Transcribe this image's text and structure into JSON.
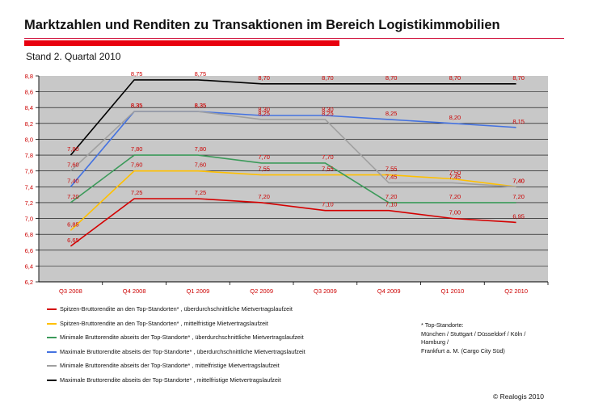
{
  "header": {
    "title": "Marktzahlen und Renditen zu Transaktionen im Bereich Logistikimmobilien",
    "subtitle": "Stand 2. Quartal 2010"
  },
  "footnote": {
    "text": "* Top-Standorte:\nMünchen / Stuttgart / Düsseldorf / Köln /\nHamburg /\nFrankfurt a. M. (Cargo City Süd)"
  },
  "copyright": "© Realogis 2010",
  "colors": {
    "plot_background": "#c8c8c8",
    "data_label": "#cc0000"
  },
  "chart_data": {
    "type": "line",
    "title": "",
    "xlabel": "",
    "ylabel": "",
    "ylim": [
      6.2,
      8.8
    ],
    "y_ticks": [
      "6,2",
      "6,4",
      "6,6",
      "6,8",
      "7,0",
      "7,2",
      "7,4",
      "7,6",
      "7,8",
      "8,0",
      "8,2",
      "8,4",
      "8,6",
      "8,8"
    ],
    "grid": true,
    "legend_position": "bottom",
    "categories": [
      "Q3 2008",
      "Q4 2008",
      "Q1 2009",
      "Q2 2009",
      "Q3 2009",
      "Q4 2009",
      "Q1 2010",
      "Q2 2010"
    ],
    "series": [
      {
        "name": "Spitzen-Bruttorendite an den Top-Standorten* , überdurchschnittliche Mietvertragslaufzeit",
        "color": "#d40000",
        "values": [
          6.65,
          7.25,
          7.25,
          7.2,
          7.1,
          7.1,
          7.0,
          6.95
        ],
        "labels": [
          "6,65",
          "7,25",
          "7,25",
          "7,20",
          "7,10",
          "7,10",
          "7,00",
          "6,95"
        ]
      },
      {
        "name": "Spitzen-Bruttorendite an den Top-Standorten* , mittelfristige Mietvertragslaufzeit",
        "color": "#ffc000",
        "values": [
          6.85,
          7.6,
          7.6,
          7.55,
          7.55,
          7.55,
          7.5,
          7.4
        ],
        "labels": [
          "6,85",
          "7,60",
          "7,60",
          "7,55",
          "7,55",
          "7,55",
          "7,50",
          "7,40"
        ]
      },
      {
        "name": "Minimale Bruttorendite abseits der Top-Standorte* , überdurchschnittliche Mietvertragslaufzeit",
        "color": "#3c9a5a",
        "values": [
          7.2,
          7.8,
          7.8,
          7.7,
          7.7,
          7.2,
          7.2,
          7.2
        ],
        "labels": [
          "7,20",
          "7,80",
          "7,80",
          "7,70",
          "7,70",
          "7,20",
          "7,20",
          "7,20"
        ]
      },
      {
        "name": "Maximale Bruttorendite abseits der Top-Standorte* , überdurchschnittliche Mietvertragslaufzeit",
        "color": "#4472e0",
        "values": [
          7.4,
          8.35,
          8.35,
          8.3,
          8.3,
          8.25,
          8.2,
          8.15
        ],
        "labels": [
          "7,40",
          "8,35",
          "8,35",
          "8,30",
          "8,30",
          "8,25",
          "8,20",
          "8,15"
        ]
      },
      {
        "name": "Minimale Bruttorendite abseits der Top-Standorte* , mittelfristige Mietvertragslaufzeit",
        "color": "#a0a0a0",
        "values": [
          7.6,
          8.35,
          8.35,
          8.25,
          8.25,
          7.45,
          7.45,
          7.4
        ],
        "labels": [
          "7,60",
          "8,35",
          "8,35",
          "8,25",
          "8,25",
          "7,45",
          "7,45",
          "7,40"
        ]
      },
      {
        "name": "Maximale Bruttorendite abseits der Top-Standorte* , mittelfristige Mietvertragslaufzeit",
        "color": "#000000",
        "values": [
          7.8,
          8.75,
          8.75,
          8.7,
          8.7,
          8.7,
          8.7,
          8.7
        ],
        "labels": [
          "7,80",
          "8,75",
          "8,75",
          "8,70",
          "8,70",
          "8,70",
          "8,70",
          "8,70"
        ]
      }
    ]
  }
}
